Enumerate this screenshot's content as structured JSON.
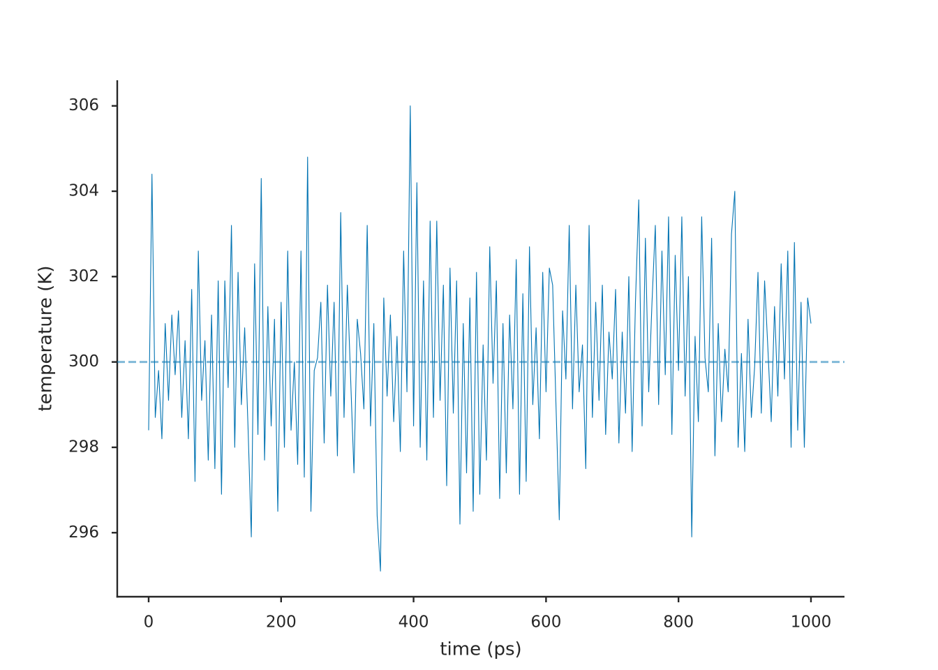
{
  "chart_data": {
    "type": "line",
    "x_label": "time (ps)",
    "y_label": "temperature (K)",
    "xlim": [
      -47.4,
      1050.6
    ],
    "ylim": [
      294.5,
      306.6
    ],
    "xticks": [
      0,
      200,
      400,
      600,
      800,
      1000
    ],
    "yticks": [
      296,
      298,
      300,
      302,
      304,
      306
    ],
    "reference_line": {
      "value": 300,
      "color": "#0173b2",
      "style": "dashed"
    },
    "x": [
      0,
      5,
      10,
      15,
      20,
      25,
      30,
      35,
      40,
      45,
      50,
      55,
      60,
      65,
      70,
      75,
      80,
      85,
      90,
      95,
      100,
      105,
      110,
      115,
      120,
      125,
      130,
      135,
      140,
      145,
      150,
      155,
      160,
      165,
      170,
      175,
      180,
      185,
      190,
      195,
      200,
      205,
      210,
      215,
      220,
      225,
      230,
      235,
      240,
      245,
      250,
      255,
      260,
      265,
      270,
      275,
      280,
      285,
      290,
      295,
      300,
      305,
      310,
      315,
      320,
      325,
      330,
      335,
      340,
      345,
      350,
      355,
      360,
      365,
      370,
      375,
      380,
      385,
      390,
      395,
      400,
      405,
      410,
      415,
      420,
      425,
      430,
      435,
      440,
      445,
      450,
      455,
      460,
      465,
      470,
      475,
      480,
      485,
      490,
      495,
      500,
      505,
      510,
      515,
      520,
      525,
      530,
      535,
      540,
      545,
      550,
      555,
      560,
      565,
      570,
      575,
      580,
      585,
      590,
      595,
      600,
      605,
      610,
      615,
      620,
      625,
      630,
      635,
      640,
      645,
      650,
      655,
      660,
      665,
      670,
      675,
      680,
      685,
      690,
      695,
      700,
      705,
      710,
      715,
      720,
      725,
      730,
      735,
      740,
      745,
      750,
      755,
      760,
      765,
      770,
      775,
      780,
      785,
      790,
      795,
      800,
      805,
      810,
      815,
      820,
      825,
      830,
      835,
      840,
      845,
      850,
      855,
      860,
      865,
      870,
      875,
      880,
      885,
      890,
      895,
      900,
      905,
      910,
      915,
      920,
      925,
      930,
      935,
      940,
      945,
      950,
      955,
      960,
      965,
      970,
      975,
      980,
      985,
      990,
      995,
      1000
    ],
    "series": [
      {
        "color": "#0173b2",
        "values": [
          298.4,
          304.4,
          298.7,
          299.8,
          298.2,
          300.9,
          299.1,
          301.1,
          299.7,
          301.2,
          298.7,
          300.5,
          298.2,
          301.7,
          297.2,
          302.6,
          299.1,
          300.5,
          297.7,
          301.1,
          297.5,
          301.9,
          296.9,
          301.9,
          299.4,
          303.2,
          298.0,
          302.1,
          299.0,
          300.8,
          298.5,
          295.9,
          302.3,
          298.3,
          304.3,
          297.7,
          301.3,
          298.5,
          301.0,
          296.5,
          301.4,
          298.0,
          302.6,
          298.4,
          300.0,
          297.6,
          302.6,
          297.3,
          304.8,
          296.5,
          299.8,
          300.1,
          301.4,
          298.1,
          301.8,
          299.2,
          301.4,
          297.8,
          303.5,
          298.7,
          301.8,
          299.6,
          297.4,
          301.0,
          300.2,
          298.9,
          303.2,
          298.5,
          300.9,
          296.4,
          295.1,
          301.5,
          299.2,
          301.1,
          298.6,
          300.6,
          297.9,
          302.6,
          299.3,
          306.0,
          298.5,
          304.2,
          298.0,
          301.9,
          297.7,
          303.3,
          298.7,
          303.3,
          299.1,
          301.8,
          297.1,
          302.2,
          298.8,
          301.9,
          296.2,
          300.9,
          297.4,
          301.5,
          296.5,
          302.1,
          296.9,
          300.4,
          297.7,
          302.7,
          299.5,
          301.9,
          296.8,
          300.9,
          297.4,
          301.1,
          298.9,
          302.4,
          296.9,
          301.6,
          297.2,
          302.7,
          299.0,
          300.8,
          298.2,
          302.1,
          299.3,
          302.2,
          301.8,
          299.0,
          296.3,
          301.2,
          299.6,
          303.2,
          298.9,
          301.8,
          299.3,
          300.4,
          297.5,
          303.2,
          298.7,
          301.4,
          299.1,
          301.8,
          298.3,
          300.7,
          299.6,
          301.7,
          298.1,
          300.7,
          298.8,
          302.0,
          297.9,
          301.4,
          303.8,
          298.5,
          302.9,
          299.3,
          301.4,
          303.2,
          299.0,
          302.6,
          299.7,
          303.4,
          298.3,
          302.5,
          299.8,
          303.4,
          299.2,
          302.0,
          295.9,
          300.6,
          298.6,
          303.4,
          300.1,
          299.3,
          302.9,
          297.8,
          300.9,
          298.6,
          300.3,
          299.3,
          303.0,
          304.0,
          298.0,
          300.2,
          297.9,
          301.0,
          298.7,
          299.9,
          302.1,
          298.8,
          301.9,
          300.3,
          298.6,
          301.3,
          299.2,
          302.3,
          299.6,
          302.6,
          298.0,
          302.8,
          298.4,
          301.4,
          298.0,
          301.5,
          300.9
        ]
      }
    ]
  }
}
